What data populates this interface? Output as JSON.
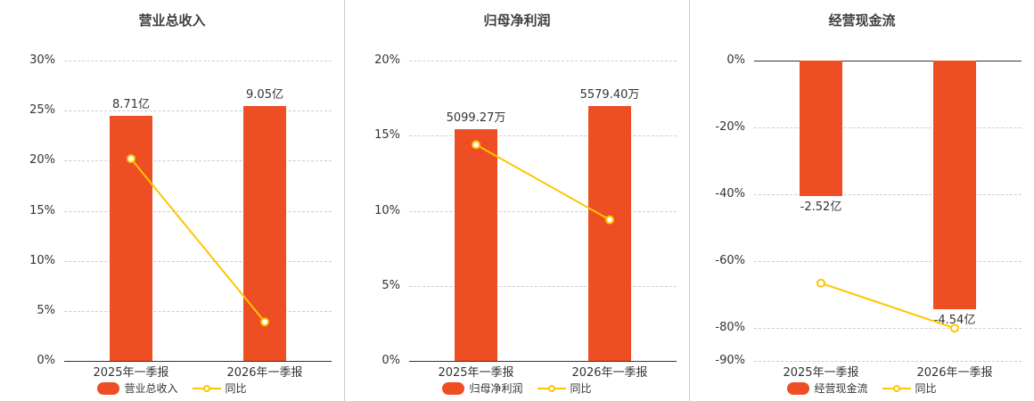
{
  "colors": {
    "bar": "#ee4e23",
    "line": "#fdc500",
    "title_text": "#404040",
    "axis_text": "#333333",
    "grid": "#cccccc"
  },
  "chart_data": [
    {
      "type": "bar+line",
      "title": "营业总收入",
      "categories": [
        "2025年一季报",
        "2026年一季报"
      ],
      "bar_series": {
        "name": "营业总收入",
        "labels": [
          "8.71亿",
          "9.05亿"
        ],
        "values_axis_pct": [
          24.5,
          25.45
        ]
      },
      "line_series": {
        "name": "同比",
        "values_pct": [
          20.2,
          3.9
        ]
      },
      "ylim": [
        0,
        30
      ],
      "yticks": [
        30,
        25,
        20,
        15,
        10,
        5,
        0
      ],
      "ytick_suffix": "%",
      "grid": "dashed",
      "legend": [
        "营业总收入",
        "同比"
      ],
      "legend_position": "bottom"
    },
    {
      "type": "bar+line",
      "title": "归母净利润",
      "categories": [
        "2025年一季报",
        "2026年一季报"
      ],
      "bar_series": {
        "name": "归母净利润",
        "labels": [
          "5099.27万",
          "5579.40万"
        ],
        "values_axis_pct": [
          15.45,
          17.0
        ]
      },
      "line_series": {
        "name": "同比",
        "values_pct": [
          14.4,
          9.4
        ]
      },
      "ylim": [
        0,
        20
      ],
      "yticks": [
        20,
        15,
        10,
        5,
        0
      ],
      "ytick_suffix": "%",
      "grid": "dashed",
      "legend": [
        "归母净利润",
        "同比"
      ],
      "legend_position": "bottom"
    },
    {
      "type": "bar+line",
      "title": "经营现金流",
      "categories": [
        "2025年一季报",
        "2026年一季报"
      ],
      "bar_series": {
        "name": "经营现金流",
        "labels": [
          "-2.52亿",
          "-4.54亿"
        ],
        "values_axis_pct": [
          -40.5,
          -74.5
        ]
      },
      "line_series": {
        "name": "同比",
        "values_pct": [
          -66.7,
          -80.2
        ]
      },
      "ylim": [
        -90,
        0
      ],
      "yticks": [
        0,
        -20,
        -40,
        -60,
        -80,
        -90
      ],
      "ytick_suffix": "%",
      "grid": "dashed",
      "legend": [
        "经营现金流",
        "同比"
      ],
      "legend_position": "bottom"
    }
  ]
}
